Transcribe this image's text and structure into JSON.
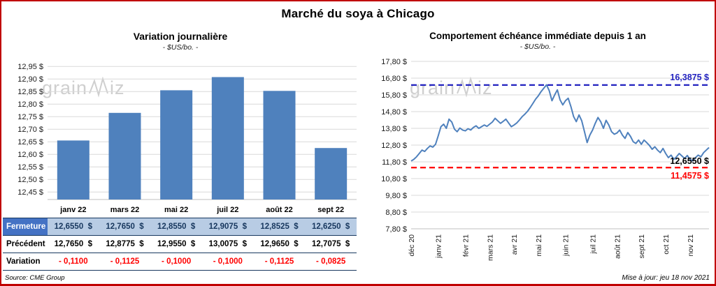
{
  "page": {
    "title": "Marché du soya à Chicago",
    "source": "Source: CME Group",
    "updated": "Mise à jour: jeu 18 nov 2021",
    "watermark": {
      "pre": "grain",
      "post": "iz"
    },
    "frame_color": "#C00000"
  },
  "chart_data": [
    {
      "type": "bar",
      "title": "Variation journalière",
      "subtitle": "- $US/bo. -",
      "categories": [
        "janv 22",
        "mars 22",
        "mai 22",
        "juil 22",
        "août 22",
        "sept 22"
      ],
      "values": [
        12.655,
        12.765,
        12.855,
        12.9075,
        12.8525,
        12.625
      ],
      "ylim": [
        12.42,
        12.97
      ],
      "ytick_values": [
        12.95,
        12.9,
        12.85,
        12.8,
        12.75,
        12.7,
        12.65,
        12.6,
        12.55,
        12.5,
        12.45
      ],
      "ytick_labels": [
        "12,95 $",
        "12,90 $",
        "12,85 $",
        "12,80 $",
        "12,75 $",
        "12,70 $",
        "12,65 $",
        "12,60 $",
        "12,55 $",
        "12,50 $",
        "12,45 $"
      ],
      "bar_color": "#4F81BD",
      "grid": true,
      "legend": "none"
    },
    {
      "type": "line",
      "title": "Comportement échéance immédiate depuis 1 an",
      "subtitle": "- $US/bo. -",
      "ylim": [
        7.8,
        17.8
      ],
      "ytick_values": [
        17.8,
        16.8,
        15.8,
        14.8,
        13.8,
        12.8,
        11.8,
        10.8,
        9.8,
        8.8,
        7.8
      ],
      "ytick_labels": [
        "17,80 $",
        "16,80 $",
        "15,80 $",
        "14,80 $",
        "13,80 $",
        "12,80 $",
        "11,80 $",
        "10,80 $",
        "9,80 $",
        "8,80 $",
        "7,80 $"
      ],
      "x_labels": [
        "déc 20",
        "janv 21",
        "févr 21",
        "mars 21",
        "avr 21",
        "mai 21",
        "juin 21",
        "juil 21",
        "août 21",
        "sept 21",
        "oct 21",
        "nov 21"
      ],
      "month_start_indices": [
        0,
        10,
        20,
        29,
        38,
        47,
        57,
        67,
        76,
        85,
        94,
        103
      ],
      "values": [
        11.85,
        11.95,
        12.1,
        12.3,
        12.5,
        12.42,
        12.6,
        12.75,
        12.68,
        12.85,
        13.35,
        13.9,
        14.05,
        13.8,
        14.35,
        14.18,
        13.75,
        13.6,
        13.82,
        13.7,
        13.65,
        13.78,
        13.7,
        13.86,
        13.95,
        13.8,
        13.9,
        14.0,
        13.92,
        14.05,
        14.18,
        14.4,
        14.25,
        14.1,
        14.22,
        14.35,
        14.12,
        13.9,
        14.0,
        14.12,
        14.3,
        14.5,
        14.65,
        14.82,
        15.05,
        15.3,
        15.55,
        15.75,
        16.0,
        16.2,
        16.4,
        16.05,
        15.45,
        15.8,
        16.1,
        15.5,
        15.2,
        15.45,
        15.6,
        15.1,
        14.5,
        14.2,
        14.6,
        14.25,
        13.6,
        12.95,
        13.4,
        13.7,
        14.1,
        14.45,
        14.2,
        13.8,
        14.28,
        14.0,
        13.6,
        13.45,
        13.52,
        13.7,
        13.4,
        13.2,
        13.55,
        13.32,
        13.0,
        12.9,
        13.1,
        12.85,
        13.1,
        12.95,
        12.78,
        12.55,
        12.7,
        12.5,
        12.35,
        12.6,
        12.3,
        12.05,
        12.2,
        11.95,
        12.1,
        12.3,
        12.15,
        12.0,
        12.18,
        11.95,
        11.86,
        12.05,
        12.2,
        12.1,
        12.35,
        12.5,
        12.655
      ],
      "line_color": "#4F81BD",
      "grid": true,
      "legend": "none",
      "ref_lines": [
        {
          "value": 16.3875,
          "label": "16,3875 $",
          "color": "#2323C0",
          "style": "dashed",
          "label_side": "above"
        },
        {
          "value": 11.4575,
          "label": "11,4575 $",
          "color": "#FF0000",
          "style": "dashed",
          "label_side": "below"
        }
      ],
      "current_label": {
        "text": "12,6550 $",
        "color": "#000000",
        "at_value": 11.4575
      }
    }
  ],
  "table": {
    "rows": [
      {
        "label": "Fermeture",
        "values": [
          "12,6550  $",
          "12,7650  $",
          "12,8550  $",
          "12,9075  $",
          "12,8525  $",
          "12,6250  $"
        ]
      },
      {
        "label": "Précédent",
        "values": [
          "12,7650  $",
          "12,8775  $",
          "12,9550  $",
          "13,0075  $",
          "12,9650  $",
          "12,7075  $"
        ]
      },
      {
        "label": "Variation",
        "values": [
          "- 0,1100",
          "- 0,1125",
          "- 0,1000",
          "- 0,1000",
          "- 0,1125",
          "- 0,0825"
        ]
      }
    ]
  }
}
